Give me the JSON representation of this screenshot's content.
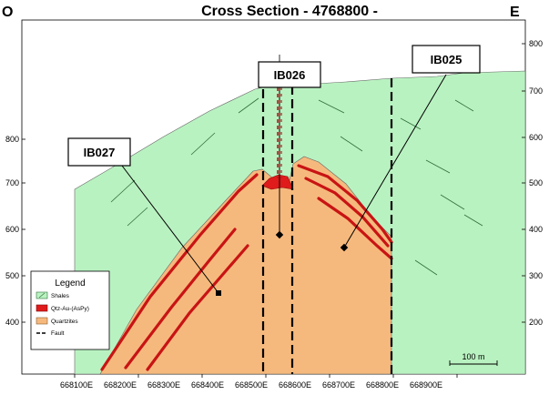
{
  "header": {
    "title": "Cross Section - 4768800 -",
    "west": "O",
    "east": "E"
  },
  "left_axis": {
    "ticks": [
      "800",
      "700",
      "600",
      "500",
      "400"
    ]
  },
  "right_axis": {
    "ticks": [
      "800",
      "700",
      "600",
      "500",
      "400",
      "300",
      "200"
    ]
  },
  "bottom_axis": {
    "ticks": [
      "668100E",
      "668200E",
      "668300E",
      "668400E",
      "668500E",
      "668600E",
      "668700E",
      "668800E",
      "668900E"
    ]
  },
  "drillholes": [
    {
      "id": "IB027"
    },
    {
      "id": "IB026"
    },
    {
      "id": "IB025"
    }
  ],
  "legend": {
    "title": "Legend",
    "items": [
      {
        "label": "Shales",
        "color": "#b9f2c1"
      },
      {
        "label": "Qtz-Au-(AsPy)",
        "color": "#e01b1b"
      },
      {
        "label": "Quartzites",
        "color": "#f6b97d"
      },
      {
        "label": "Fault",
        "color": "#000000"
      }
    ]
  },
  "scale_bar": {
    "label": "100 m"
  }
}
